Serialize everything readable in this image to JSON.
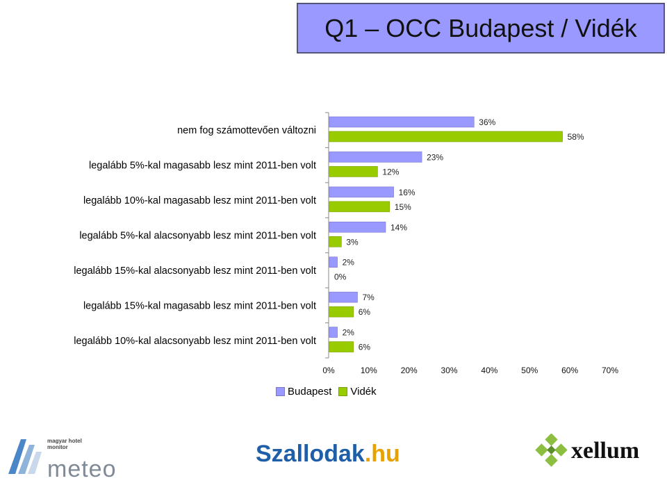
{
  "title": "Q1 – OCC  Budapest / Vidék",
  "colors": {
    "budapest": "#9999ff",
    "videk": "#99cc00",
    "budapest_border": "#7777cc",
    "videk_border": "#77a000"
  },
  "legend": {
    "budapest": "Budapest",
    "videk": "Vidék"
  },
  "logos": {
    "meteo_small": "magyar hotel monitor",
    "meteo_word": "meteo",
    "szallodak": "Szallodak",
    "szallodak_tld": ".hu",
    "xellum": "xellum"
  },
  "chart_data": {
    "type": "bar",
    "orientation": "horizontal",
    "categories": [
      "nem fog számottevően változni",
      "legalább 5%-kal magasabb lesz mint 2011-ben volt",
      "legalább 10%-kal magasabb lesz mint 2011-ben volt",
      "legalább 5%-kal alacsonyabb lesz mint 2011-ben volt",
      "legalább 15%-kal alacsonyabb lesz mint 2011-ben volt",
      "legalább 15%-kal magasabb lesz mint 2011-ben volt",
      "legalább 10%-kal alacsonyabb lesz mint 2011-ben volt"
    ],
    "series": [
      {
        "name": "Budapest",
        "values": [
          36,
          23,
          16,
          14,
          2,
          7,
          2
        ],
        "labels": [
          "36%",
          "23%",
          "16%",
          "14%",
          "2%",
          "7%",
          "2%"
        ]
      },
      {
        "name": "Vidék",
        "values": [
          58,
          12,
          15,
          3,
          0,
          6,
          6
        ],
        "labels": [
          "58%",
          "12%",
          "15%",
          "3%",
          "0%",
          "6%",
          "6%"
        ]
      }
    ],
    "xlim": [
      0,
      70
    ],
    "xticks": [
      "0%",
      "10%",
      "20%",
      "30%",
      "40%",
      "50%",
      "60%",
      "70%"
    ],
    "grid": false,
    "legend_position": "bottom"
  }
}
